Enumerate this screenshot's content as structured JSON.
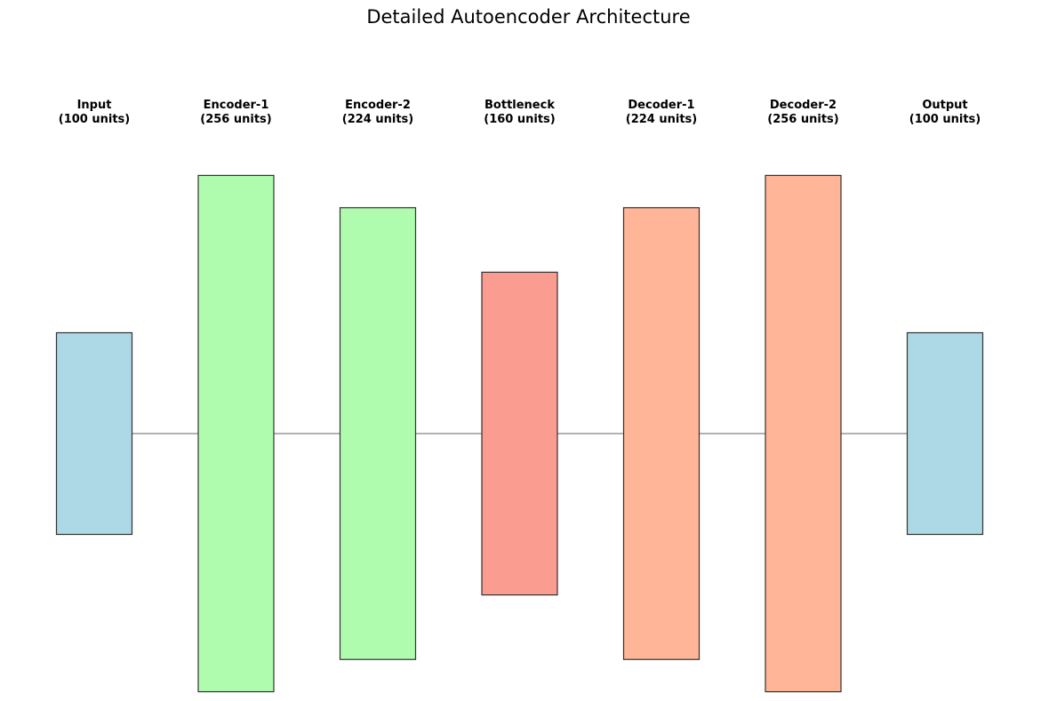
{
  "title": "Detailed Autoencoder Architecture",
  "colors": {
    "io": "#add8e6",
    "encoder": "#98fb98",
    "bottleneck": "#fa8072",
    "decoder": "#ffa07a",
    "border": "#333333",
    "connector": "#999999"
  },
  "layers": [
    {
      "name": "Input",
      "units_label": "(100 units)",
      "units": 100,
      "role": "io"
    },
    {
      "name": "Encoder-1",
      "units_label": "(256 units)",
      "units": 256,
      "role": "encoder"
    },
    {
      "name": "Encoder-2",
      "units_label": "(224 units)",
      "units": 224,
      "role": "encoder"
    },
    {
      "name": "Bottleneck",
      "units_label": "(160 units)",
      "units": 160,
      "role": "bottleneck"
    },
    {
      "name": "Decoder-1",
      "units_label": "(224 units)",
      "units": 224,
      "role": "decoder"
    },
    {
      "name": "Decoder-2",
      "units_label": "(256 units)",
      "units": 256,
      "role": "decoder"
    },
    {
      "name": "Output",
      "units_label": "(100 units)",
      "units": 100,
      "role": "io"
    }
  ]
}
